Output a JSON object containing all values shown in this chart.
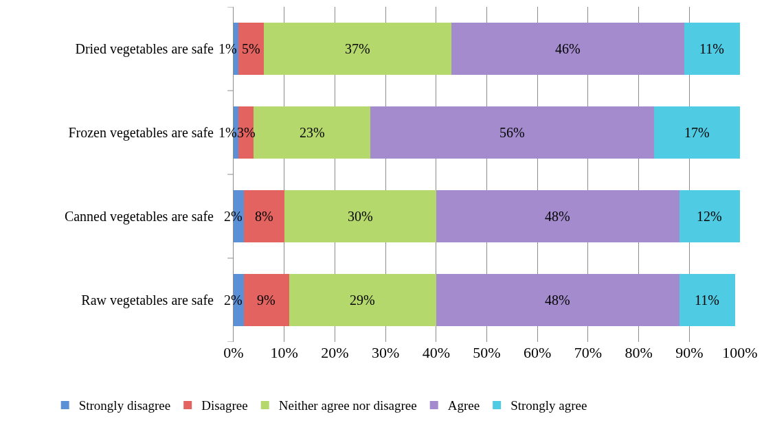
{
  "chart_data": {
    "type": "bar",
    "orientation": "horizontal",
    "stacked": true,
    "categories": [
      "Dried vegetables are safe",
      "Frozen vegetables are safe",
      "Canned vegetables are safe",
      "Raw vegetables are safe"
    ],
    "series": [
      {
        "name": "Strongly disagree",
        "color": "#5b8fd6",
        "values": [
          1,
          1,
          2,
          2
        ],
        "value_labels": [
          "1%",
          "1%",
          "2%",
          "2%"
        ]
      },
      {
        "name": "Disagree",
        "color": "#e2635f",
        "values": [
          5,
          3,
          8,
          9
        ],
        "value_labels": [
          "5%",
          "3%",
          "8%",
          "9%"
        ]
      },
      {
        "name": "Neither agree nor disagree",
        "color": "#b5d86c",
        "values": [
          37,
          23,
          30,
          29
        ],
        "value_labels": [
          "37%",
          "23%",
          "30%",
          "29%"
        ]
      },
      {
        "name": "Agree",
        "color": "#a38bcd",
        "values": [
          46,
          56,
          48,
          48
        ],
        "value_labels": [
          "46%",
          "56%",
          "48%",
          "48%"
        ]
      },
      {
        "name": "Strongly agree",
        "color": "#4fcbe3",
        "values": [
          11,
          17,
          12,
          11
        ],
        "value_labels": [
          "11%",
          "17%",
          "12%",
          "11%"
        ]
      }
    ],
    "xlim": [
      0,
      100
    ],
    "xticks": [
      {
        "value": 0,
        "label": "0%"
      },
      {
        "value": 10,
        "label": "10%"
      },
      {
        "value": 20,
        "label": "20%"
      },
      {
        "value": 30,
        "label": "30%"
      },
      {
        "value": 40,
        "label": "40%"
      },
      {
        "value": 50,
        "label": "50%"
      },
      {
        "value": 60,
        "label": "60%"
      },
      {
        "value": 70,
        "label": "70%"
      },
      {
        "value": 80,
        "label": "80%"
      },
      {
        "value": 90,
        "label": "90%"
      },
      {
        "value": 100,
        "label": "100%"
      }
    ],
    "grid": "x",
    "legend": "bottom"
  }
}
